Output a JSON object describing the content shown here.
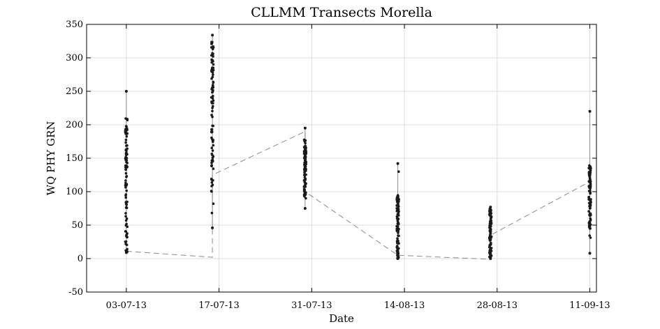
{
  "chart_data": {
    "type": "scatter",
    "title": "CLLMM Transects Morella",
    "xlabel": "Date",
    "ylabel": "WQ PHY GRN",
    "xlim": [
      "2013-06-27",
      "2013-09-12"
    ],
    "ylim": [
      -50,
      350
    ],
    "yticks": [
      -50,
      0,
      50,
      100,
      150,
      200,
      250,
      300,
      350
    ],
    "xticks": [
      {
        "date": "2013-07-03",
        "label": "03-07-13"
      },
      {
        "date": "2013-07-17",
        "label": "17-07-13"
      },
      {
        "date": "2013-07-31",
        "label": "31-07-13"
      },
      {
        "date": "2013-08-14",
        "label": "14-08-13"
      },
      {
        "date": "2013-08-28",
        "label": "28-08-13"
      },
      {
        "date": "2013-09-11",
        "label": "11-09-13"
      }
    ],
    "grid": true,
    "series": [
      {
        "transects": [
          {
            "date": "2013-07-03",
            "min": 9,
            "max": 250,
            "dense_min": 10,
            "dense_max": 210
          },
          {
            "date": "2013-07-16",
            "min": 46,
            "max": 334,
            "dense_min": 100,
            "dense_max": 325
          },
          {
            "date": "2013-07-30",
            "min": 75,
            "max": 195,
            "dense_min": 90,
            "dense_max": 178
          },
          {
            "date": "2013-08-13",
            "min": 0,
            "max": 142,
            "dense_min": 0,
            "dense_max": 95
          },
          {
            "date": "2013-08-27",
            "min": 0,
            "max": 77,
            "dense_min": 2,
            "dense_max": 76
          },
          {
            "date": "2013-09-11",
            "min": 8,
            "max": 220,
            "dense_min": 45,
            "dense_max": 140
          }
        ],
        "path": [
          {
            "date": "2013-07-03",
            "value": 11
          },
          {
            "date": "2013-07-16",
            "value": 2
          },
          {
            "date": "2013-07-16",
            "value": 125
          },
          {
            "date": "2013-07-30",
            "value": 190
          },
          {
            "date": "2013-07-30",
            "value": 100
          },
          {
            "date": "2013-08-13",
            "value": 5
          },
          {
            "date": "2013-08-27",
            "value": -1
          },
          {
            "date": "2013-08-27",
            "value": 35
          },
          {
            "date": "2013-09-11",
            "value": 115
          }
        ]
      }
    ]
  }
}
